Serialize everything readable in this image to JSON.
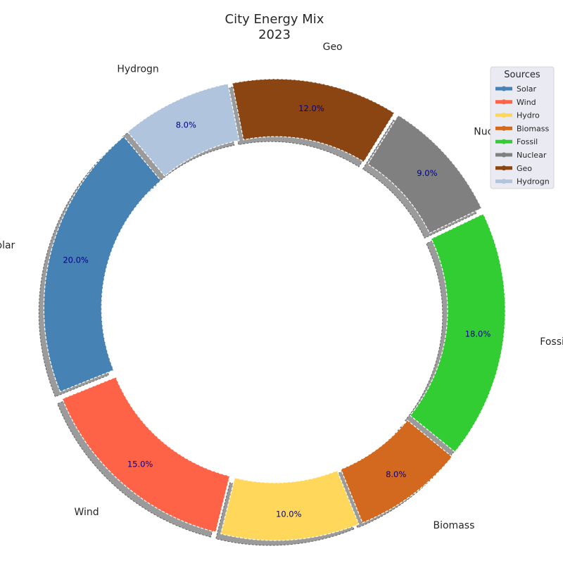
{
  "chart_data": {
    "type": "pie",
    "variant": "donut",
    "title": "City Energy Mix\n2023",
    "categories": [
      "Solar",
      "Wind",
      "Hydro",
      "Biomass",
      "Fossil",
      "Nuclear",
      "Geo",
      "Hydrogn"
    ],
    "values": [
      20.0,
      15.0,
      10.0,
      8.0,
      18.0,
      9.0,
      12.0,
      8.0
    ],
    "percent_labels": [
      "20.0%",
      "15.0%",
      "10.0%",
      "8.0%",
      "18.0%",
      "9.0%",
      "12.0%",
      "8.0%"
    ],
    "colors": [
      "#4682b4",
      "#ff6347",
      "#ffd75a",
      "#d2691e",
      "#32cd32",
      "#808080",
      "#8b4513",
      "#b0c4de"
    ],
    "exploded": true,
    "shadow": true,
    "legend": {
      "title": "Sources",
      "placement": "top-right",
      "entries": [
        "Solar",
        "Wind",
        "Hydro",
        "Biomass",
        "Fossil",
        "Nuclear",
        "Geo",
        "Hydrogn"
      ]
    }
  }
}
